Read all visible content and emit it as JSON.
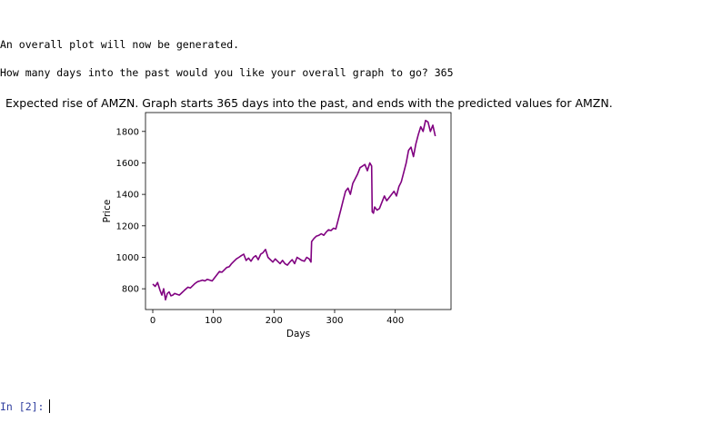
{
  "output": {
    "line1": "An overall plot will now be generated.",
    "line2": "How many days into the past would you like your overall graph to go? 365"
  },
  "figure_title": "Expected rise of AMZN. Graph starts 365 days into the past, and ends with the predicted values for AMZN.",
  "chart_data": {
    "type": "line",
    "title": "Expected rise of AMZN. Graph starts 365 days into the past, and ends with the predicted values for AMZN.",
    "xlabel": "Days",
    "ylabel": "Price",
    "xlim": [
      -12,
      492
    ],
    "ylim": [
      668,
      1920
    ],
    "xticks": [
      0,
      100,
      200,
      300,
      400
    ],
    "yticks": [
      800,
      1000,
      1200,
      1400,
      1600,
      1800
    ],
    "grid": false,
    "series": [
      {
        "color": "#800080",
        "x": [
          0,
          4,
          8,
          12,
          15,
          18,
          21,
          24,
          27,
          30,
          33,
          36,
          40,
          44,
          48,
          52,
          55,
          58,
          62,
          66,
          70,
          74,
          78,
          82,
          86,
          90,
          94,
          98,
          102,
          106,
          110,
          114,
          118,
          122,
          126,
          130,
          134,
          138,
          142,
          146,
          150,
          154,
          158,
          162,
          166,
          170,
          174,
          178,
          182,
          186,
          190,
          194,
          198,
          202,
          206,
          210,
          214,
          218,
          222,
          226,
          230,
          234,
          238,
          242,
          246,
          250,
          254,
          258,
          261,
          262,
          266,
          270,
          274,
          278,
          282,
          286,
          290,
          294,
          298,
          302,
          306,
          310,
          314,
          318,
          322,
          326,
          330,
          334,
          338,
          342,
          346,
          350,
          354,
          358,
          361,
          362,
          364,
          366,
          370,
          374,
          378,
          382,
          386,
          390,
          394,
          398,
          402,
          406,
          410,
          414,
          418,
          422,
          426,
          430,
          434,
          438,
          442,
          446,
          450,
          454,
          458,
          462,
          466
        ],
        "y": [
          830,
          815,
          840,
          790,
          760,
          800,
          730,
          770,
          780,
          755,
          760,
          770,
          765,
          760,
          775,
          790,
          800,
          810,
          805,
          820,
          835,
          845,
          850,
          855,
          850,
          860,
          855,
          850,
          870,
          890,
          910,
          905,
          920,
          935,
          940,
          960,
          975,
          990,
          1000,
          1010,
          1020,
          980,
          995,
          975,
          1000,
          1010,
          985,
          1020,
          1030,
          1050,
          1000,
          985,
          970,
          990,
          975,
          960,
          980,
          960,
          950,
          970,
          985,
          960,
          1000,
          990,
          980,
          975,
          1000,
          990,
          970,
          1100,
          1120,
          1135,
          1140,
          1150,
          1140,
          1160,
          1175,
          1170,
          1185,
          1180,
          1240,
          1300,
          1360,
          1420,
          1440,
          1400,
          1470,
          1500,
          1530,
          1570,
          1580,
          1590,
          1550,
          1600,
          1580,
          1290,
          1280,
          1320,
          1300,
          1310,
          1350,
          1390,
          1360,
          1380,
          1400,
          1420,
          1390,
          1450,
          1480,
          1540,
          1600,
          1680,
          1700,
          1640,
          1720,
          1780,
          1830,
          1800,
          1870,
          1860,
          1800,
          1840,
          1770
        ]
      }
    ]
  },
  "prompt": {
    "label": "In [2]:"
  }
}
